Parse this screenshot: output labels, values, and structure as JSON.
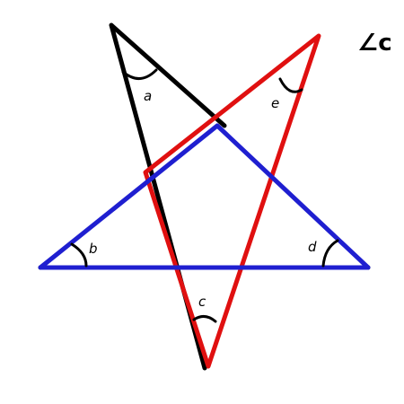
{
  "corner_label": "∠c",
  "angles": [
    "a",
    "b",
    "c",
    "d",
    "e"
  ],
  "colors": {
    "black_line": "#000000",
    "red_line": "#e01010",
    "blue_line": "#1f1fd0",
    "background": "#ffffff"
  }
}
